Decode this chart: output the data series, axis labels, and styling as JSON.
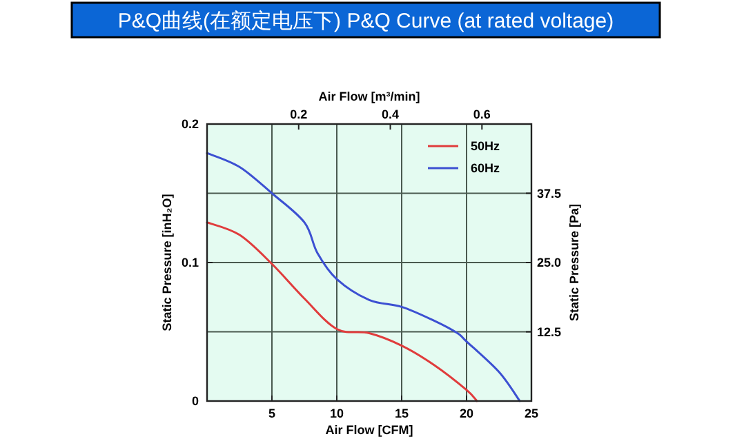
{
  "chart_data": {
    "type": "line",
    "title": "P&Q曲线(在额定电压下)  P&Q Curve  (at rated voltage)",
    "xlabel": "Air Flow  [CFM]",
    "x2label": "Air Flow  [m³/min]",
    "ylabel": "Static Pressure  [inH₂O]",
    "y2label": "Static Pressure  [Pa]",
    "xlim": [
      0,
      25
    ],
    "xticks": [
      5,
      10,
      15,
      20,
      25
    ],
    "ylim": [
      0,
      0.2
    ],
    "yticks": [
      0,
      0.1,
      0.2
    ],
    "x2lim": [
      0,
      0.708
    ],
    "x2ticks": [
      0.2,
      0.4,
      0.6
    ],
    "y2lim": [
      0,
      50
    ],
    "y2ticks": [
      12.5,
      {
        "value": 25,
        "label": "25.0"
      },
      37.5
    ],
    "grid": true,
    "legend": "top right",
    "series": [
      {
        "name": "50Hz",
        "color": "#e03c3c",
        "x": [
          0,
          2.5,
          5,
          7.5,
          10,
          12.5,
          15,
          17.5,
          20,
          20.8
        ],
        "values": [
          0.129,
          0.12,
          0.099,
          0.074,
          0.052,
          0.049,
          0.04,
          0.026,
          0.008,
          0
        ]
      },
      {
        "name": "60Hz",
        "color": "#3c50d2",
        "x": [
          0,
          2.5,
          5,
          7.5,
          8.5,
          10,
          12.5,
          15,
          17.5,
          19.3,
          20,
          22.5,
          24.1
        ],
        "values": [
          0.179,
          0.169,
          0.15,
          0.129,
          0.107,
          0.088,
          0.073,
          0.068,
          0.058,
          0.049,
          0.043,
          0.021,
          0
        ]
      }
    ]
  }
}
